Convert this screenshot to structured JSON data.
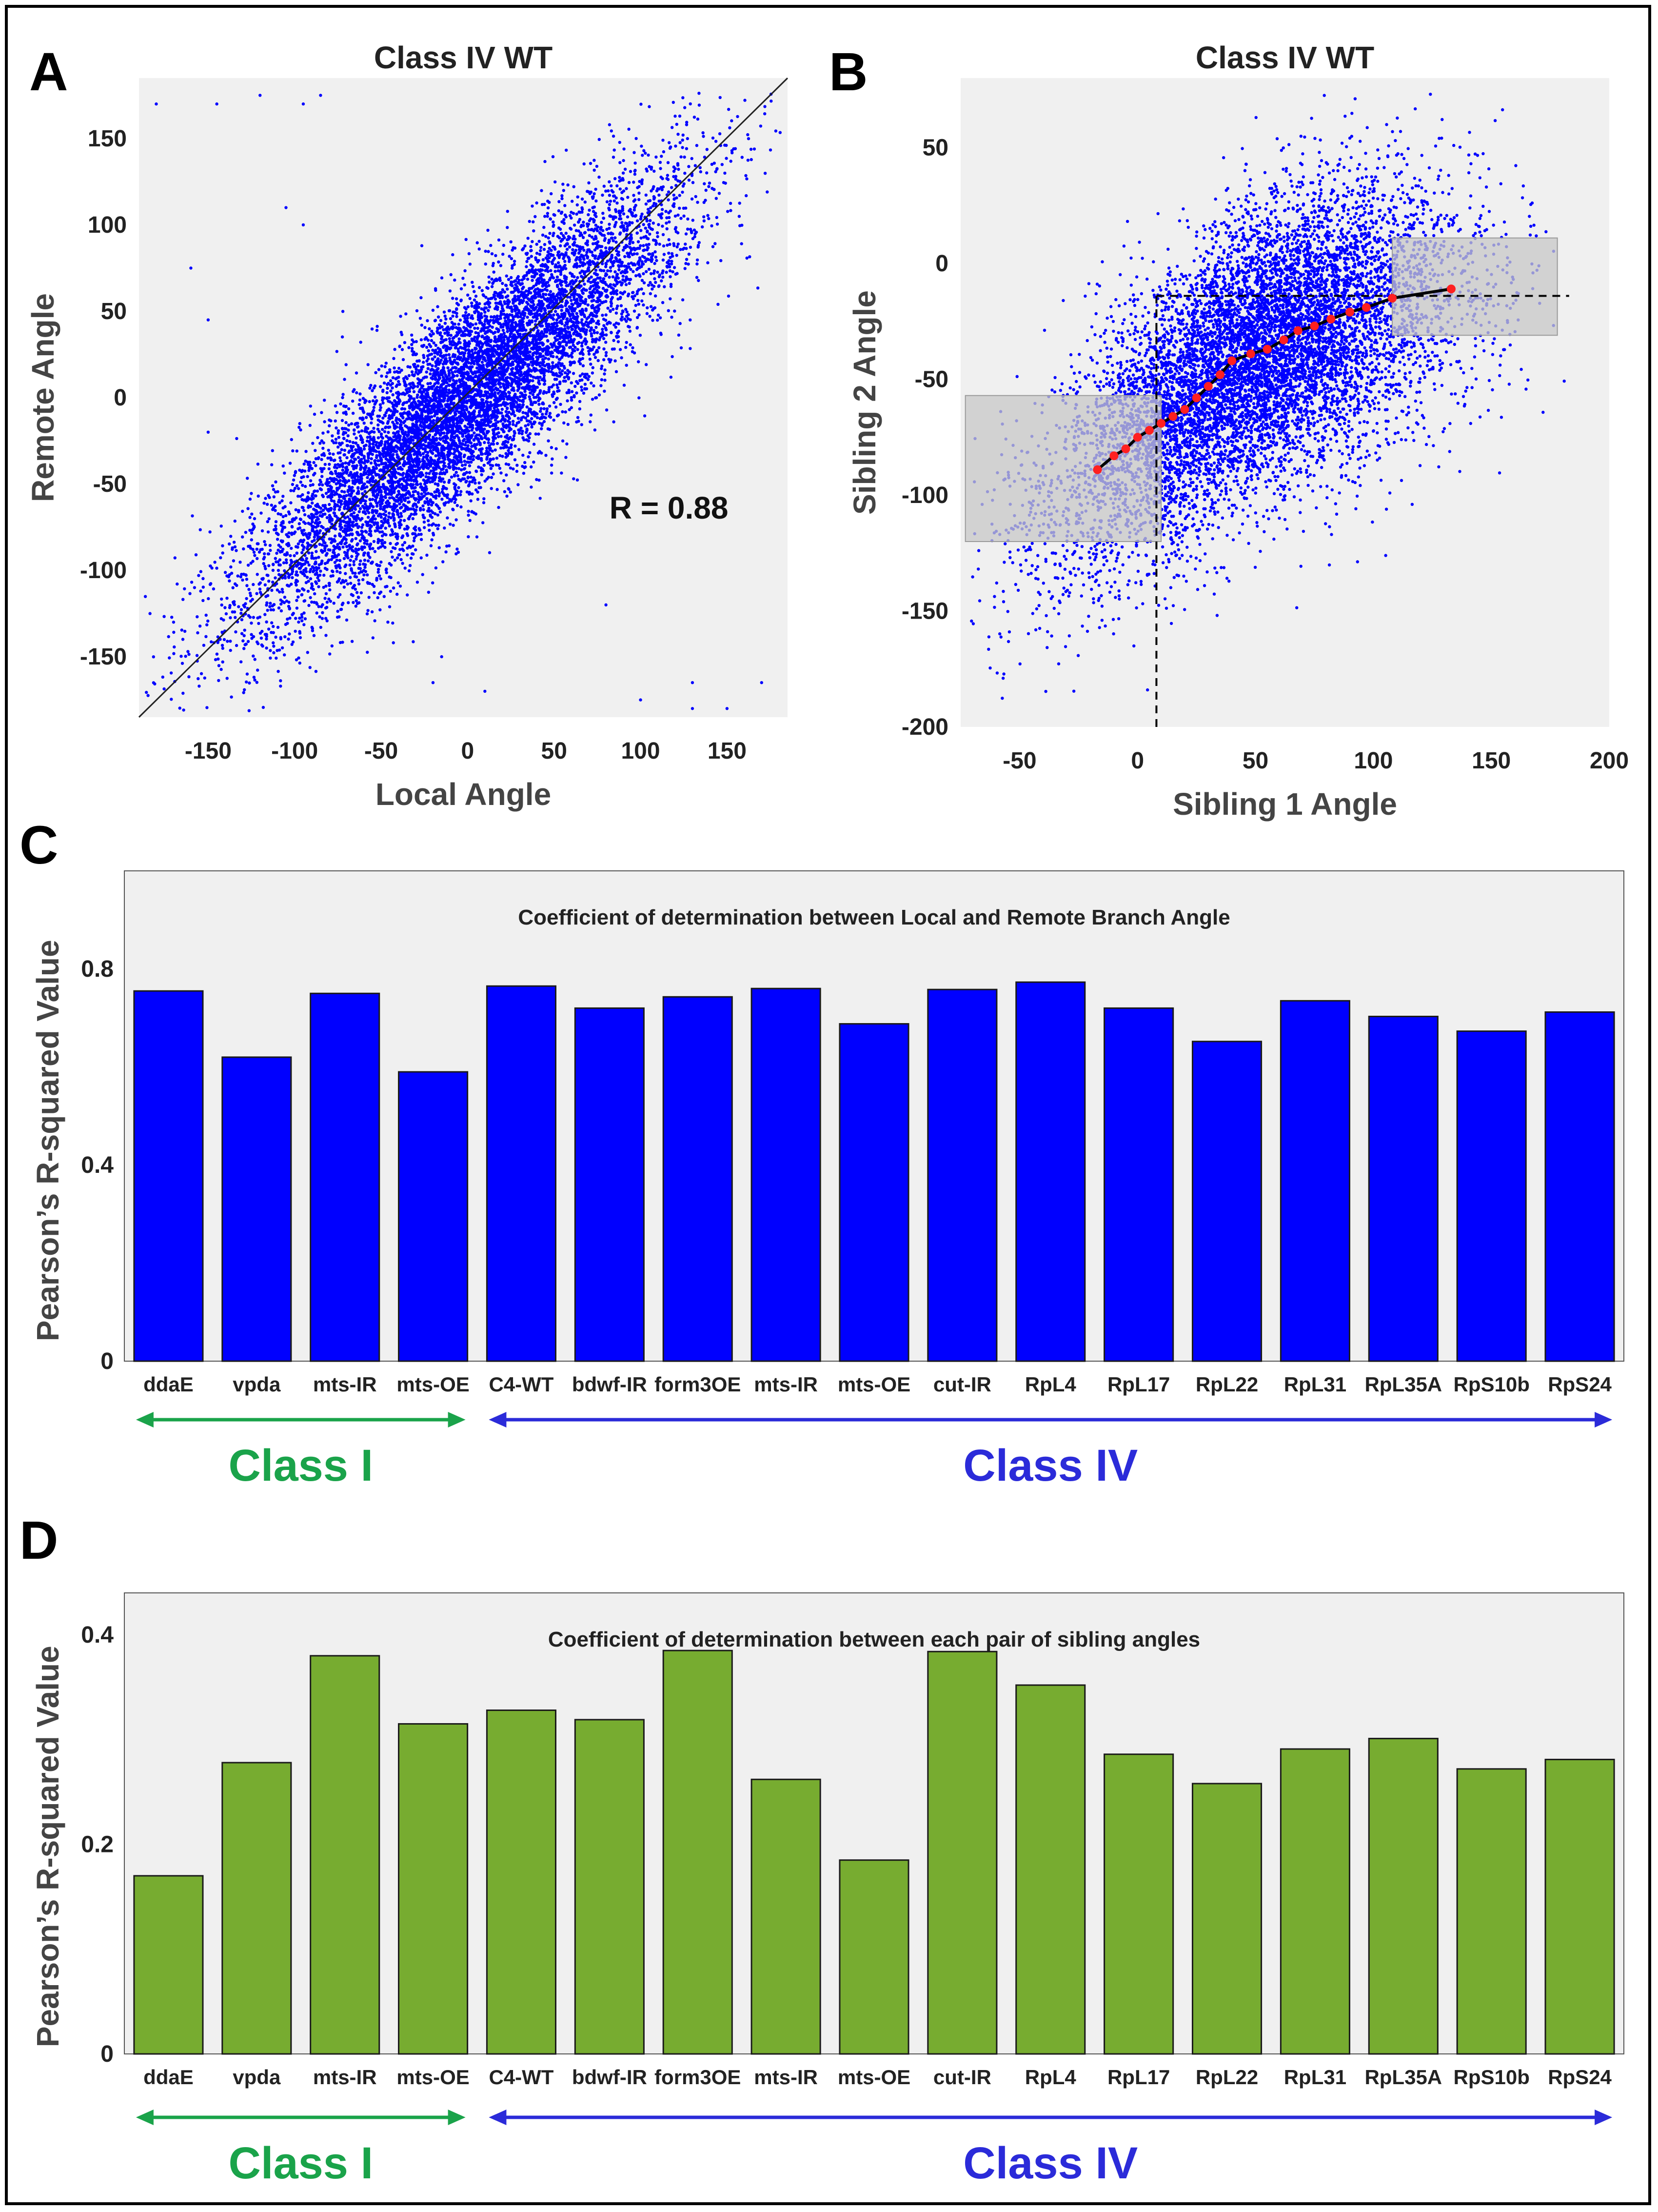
{
  "panels": {
    "a": {
      "letter": "A"
    },
    "b": {
      "letter": "B"
    },
    "c": {
      "letter": "C"
    },
    "d": {
      "letter": "D"
    }
  },
  "colors": {
    "plot_bg": "#f0f0f0",
    "scatter_blue": "#0000ff",
    "bar_blue": "#0000ff",
    "bar_green": "#77ac30",
    "class1_green": "#1aa34a",
    "class4_blue": "#2b2bd9",
    "shade_gray": "#c8c8c8",
    "fit_red": "#ff2020"
  },
  "chart_data": [
    {
      "id": "scatter-a",
      "type": "scatter",
      "title": "Class IV WT",
      "xlabel": "Local Angle",
      "ylabel": "Remote Angle",
      "xlim": [
        -190,
        185
      ],
      "ylim": [
        -185,
        185
      ],
      "xticks": [
        -150,
        -100,
        -50,
        0,
        50,
        100,
        150
      ],
      "yticks": [
        -150,
        -100,
        -50,
        0,
        50,
        100,
        150
      ],
      "annotation": "R = 0.88",
      "r": 0.88,
      "n_points": 9000,
      "diagonal_line": {
        "x": [
          -190,
          185
        ],
        "y": [
          -185,
          185
        ]
      },
      "outliers": [
        [
          -180,
          170
        ],
        [
          -145,
          170
        ],
        [
          -120,
          175
        ],
        [
          -95,
          170
        ],
        [
          -85,
          175
        ],
        [
          -160,
          75
        ],
        [
          -150,
          45
        ],
        [
          -105,
          110
        ],
        [
          -95,
          100
        ],
        [
          -150,
          -20
        ],
        [
          -170,
          -130
        ],
        [
          130,
          -165
        ],
        [
          170,
          -165
        ],
        [
          100,
          -175
        ],
        [
          150,
          -180
        ],
        [
          -15,
          -150
        ],
        [
          -20,
          -165
        ],
        [
          10,
          -170
        ],
        [
          80,
          -120
        ],
        [
          130,
          -180
        ]
      ]
    },
    {
      "id": "scatter-b",
      "type": "scatter",
      "title": "Class IV WT",
      "xlabel": "Sibling 1 Angle",
      "ylabel": "Sibling 2 Angle",
      "xlim": [
        -75,
        200
      ],
      "ylim": [
        -200,
        80
      ],
      "xticks": [
        -50,
        0,
        50,
        100,
        150,
        200
      ],
      "yticks": [
        -200,
        -150,
        -100,
        -50,
        0,
        50
      ],
      "n_points": 9000,
      "shaded_regions": [
        {
          "x": [
            -73,
            10
          ],
          "y": [
            -120,
            -57
          ]
        },
        {
          "x": [
            108,
            178
          ],
          "y": [
            -31,
            11
          ]
        }
      ],
      "dashed_lines": {
        "vertical_x": 8,
        "horizontal_y": -14,
        "h_from_x": 8,
        "h_to_x": 183
      },
      "fit_points": {
        "x": [
          -17,
          -10,
          -5,
          0,
          5,
          10,
          15,
          20,
          25,
          30,
          35,
          40,
          48,
          55,
          62,
          68,
          75,
          82,
          90,
          97,
          108,
          133
        ],
        "y": [
          -89,
          -83,
          -80,
          -75,
          -72,
          -69,
          -66,
          -63,
          -58,
          -53,
          -48,
          -42,
          -39,
          -37,
          -33,
          -29,
          -27,
          -24,
          -21,
          -19,
          -15,
          -11
        ]
      }
    },
    {
      "id": "bar-c",
      "type": "bar",
      "title": "Coefficient of determination between Local and Remote Branch Angle",
      "ylabel": "Pearson’s R-squared Value",
      "ylim": [
        0,
        1.0
      ],
      "yticks": [
        0,
        0.4,
        0.8
      ],
      "categories": [
        "ddaE",
        "vpda",
        "mts-IR",
        "mts-OE",
        "C4-WT",
        "bdwf-IR",
        "form3OE",
        "mts-IR",
        "mts-OE",
        "cut-IR",
        "RpL4",
        "RpL17",
        "RpL22",
        "RpL31",
        "RpL35A",
        "RpS10b",
        "RpS24"
      ],
      "values": [
        0.755,
        0.62,
        0.75,
        0.59,
        0.765,
        0.72,
        0.743,
        0.76,
        0.688,
        0.758,
        0.773,
        0.72,
        0.652,
        0.735,
        0.703,
        0.673,
        0.712
      ],
      "class_groups": [
        {
          "label": "Class I",
          "from": 0,
          "to": 3
        },
        {
          "label": "Class IV",
          "from": 4,
          "to": 16
        }
      ]
    },
    {
      "id": "bar-d",
      "type": "bar",
      "title": "Coefficient of determination between each pair of sibling angles",
      "ylabel": "Pearson’s R-squared Value",
      "ylim": [
        0,
        0.44
      ],
      "yticks": [
        0,
        0.2,
        0.4
      ],
      "categories": [
        "ddaE",
        "vpda",
        "mts-IR",
        "mts-OE",
        "C4-WT",
        "bdwf-IR",
        "form3OE",
        "mts-IR",
        "mts-OE",
        "cut-IR",
        "RpL4",
        "RpL17",
        "RpL22",
        "RpL31",
        "RpL35A",
        "RpS10b",
        "RpS24"
      ],
      "values": [
        0.17,
        0.278,
        0.38,
        0.315,
        0.328,
        0.319,
        0.385,
        0.262,
        0.185,
        0.384,
        0.352,
        0.286,
        0.258,
        0.291,
        0.301,
        0.272,
        0.281
      ],
      "class_groups": [
        {
          "label": "Class I",
          "from": 0,
          "to": 3
        },
        {
          "label": "Class IV",
          "from": 4,
          "to": 16
        }
      ]
    }
  ]
}
